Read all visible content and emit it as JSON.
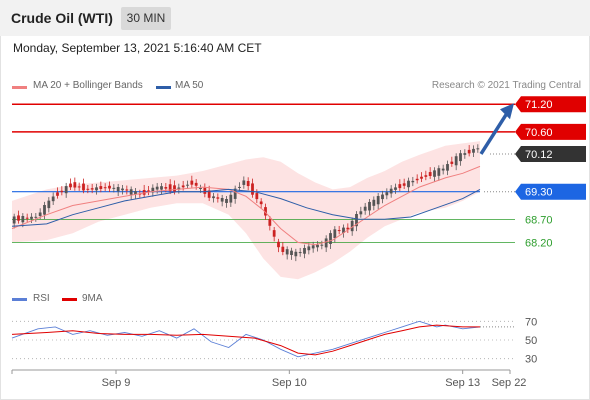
{
  "header": {
    "instrument": "Crude Oil (WTI)",
    "timeframe": "30 MIN"
  },
  "datetime": "Monday, September 13, 2021 5:16:40 AM CET",
  "legend": {
    "items": [
      {
        "label": "MA 20 + Bollinger Bands",
        "color": "#f08080"
      },
      {
        "label": "MA 50",
        "color": "#2e5ea8"
      }
    ],
    "credit": "Research © 2021 Trading Central"
  },
  "rsi_legend": {
    "items": [
      {
        "label": "RSI",
        "color": "#5b7fd6"
      },
      {
        "label": "9MA",
        "color": "#e00000"
      }
    ]
  },
  "colors": {
    "resistance": "#e00000",
    "support_strong": "#1d66e3",
    "support": "#2e9e2e",
    "price": "#333333",
    "arrow": "#2e5ea8",
    "band_fill": "#fde3e3",
    "candle_up": "#555555",
    "candle_down": "#cc2222"
  },
  "chart_data": {
    "type": "line",
    "xlabels": [
      "Sep 9",
      "Sep 10",
      "Sep 13",
      "Sep 22"
    ],
    "ylim": [
      67.6,
      71.4
    ],
    "levels": [
      {
        "value": 71.2,
        "label": "71.20",
        "kind": "resistance"
      },
      {
        "value": 70.6,
        "label": "70.60",
        "kind": "resistance"
      },
      {
        "value": 70.12,
        "label": "70.12",
        "kind": "price"
      },
      {
        "value": 69.3,
        "label": "69.30",
        "kind": "support_strong"
      },
      {
        "value": 68.7,
        "label": "68.70",
        "kind": "support"
      },
      {
        "value": 68.2,
        "label": "68.20",
        "kind": "support"
      }
    ],
    "price": {
      "t": [
        0,
        6,
        10,
        14,
        18,
        22,
        26,
        30,
        34,
        38,
        42,
        46,
        50,
        54,
        58,
        62,
        66,
        69,
        72,
        75,
        78,
        81,
        84,
        88,
        92,
        96,
        100,
        104,
        108
      ],
      "close": [
        68.7,
        68.75,
        69.2,
        69.45,
        69.35,
        69.4,
        69.35,
        69.25,
        69.4,
        69.35,
        69.5,
        69.2,
        69.1,
        69.55,
        69.0,
        68.05,
        67.95,
        68.1,
        68.15,
        68.45,
        68.5,
        68.9,
        69.1,
        69.35,
        69.5,
        69.65,
        69.8,
        70.1,
        70.25
      ]
    },
    "ma20": {
      "t": [
        0,
        8,
        14,
        20,
        26,
        32,
        38,
        44,
        50,
        54,
        58,
        62,
        66,
        70,
        74,
        78,
        82,
        86,
        90,
        94,
        100,
        104,
        108
      ],
      "value": [
        68.5,
        68.8,
        69.0,
        69.1,
        69.2,
        69.3,
        69.35,
        69.4,
        69.35,
        69.2,
        68.9,
        68.5,
        68.2,
        68.15,
        68.25,
        68.5,
        68.75,
        69.0,
        69.2,
        69.4,
        69.6,
        69.7,
        69.85
      ]
    },
    "bb_upper": {
      "t": [
        0,
        8,
        14,
        20,
        26,
        32,
        38,
        44,
        50,
        54,
        58,
        62,
        66,
        70,
        74,
        78,
        82,
        86,
        90,
        94,
        100,
        104,
        108
      ],
      "value": [
        69.1,
        69.35,
        69.45,
        69.5,
        69.55,
        69.6,
        69.65,
        69.75,
        69.9,
        70.0,
        70.05,
        69.95,
        69.7,
        69.5,
        69.35,
        69.4,
        69.6,
        69.75,
        69.95,
        70.1,
        70.3,
        70.35,
        70.4
      ]
    },
    "bb_lower": {
      "t": [
        0,
        8,
        14,
        20,
        26,
        32,
        38,
        44,
        50,
        54,
        58,
        62,
        66,
        70,
        74,
        78,
        82,
        86,
        90,
        94,
        100,
        104,
        108
      ],
      "value": [
        68.2,
        68.25,
        68.4,
        68.65,
        68.8,
        68.95,
        69.05,
        69.05,
        68.8,
        68.4,
        67.85,
        67.45,
        67.4,
        67.55,
        67.75,
        68.0,
        68.3,
        68.55,
        68.7,
        68.85,
        68.95,
        69.1,
        69.3
      ]
    },
    "ma50": {
      "t": [
        0,
        8,
        14,
        20,
        26,
        32,
        38,
        44,
        50,
        56,
        62,
        68,
        74,
        80,
        86,
        92,
        98,
        104,
        108
      ],
      "value": [
        68.55,
        68.6,
        68.8,
        68.95,
        69.1,
        69.2,
        69.3,
        69.3,
        69.35,
        69.3,
        69.15,
        68.95,
        68.8,
        68.7,
        68.7,
        68.75,
        68.95,
        69.15,
        69.35
      ]
    },
    "forecast": {
      "from": 70.12,
      "to": 71.2
    },
    "rsi": {
      "ylim": [
        20,
        80
      ],
      "levels": [
        70,
        50,
        30
      ],
      "rsi": {
        "t": [
          0,
          6,
          10,
          14,
          18,
          22,
          26,
          30,
          34,
          38,
          42,
          46,
          50,
          54,
          58,
          62,
          66,
          70,
          74,
          78,
          82,
          86,
          90,
          94,
          98,
          100,
          104,
          108
        ],
        "value": [
          52,
          62,
          64,
          56,
          60,
          55,
          58,
          54,
          60,
          52,
          62,
          48,
          42,
          56,
          50,
          40,
          32,
          36,
          40,
          46,
          52,
          58,
          64,
          70,
          64,
          66,
          62,
          64
        ]
      },
      "ma9": {
        "t": [
          0,
          8,
          14,
          20,
          26,
          32,
          38,
          44,
          50,
          56,
          62,
          66,
          70,
          74,
          78,
          82,
          86,
          90,
          94,
          98,
          104,
          108
        ],
        "value": [
          56,
          58,
          60,
          57,
          56,
          56,
          55,
          56,
          54,
          52,
          44,
          36,
          34,
          38,
          44,
          50,
          56,
          60,
          64,
          66,
          64,
          64
        ]
      }
    }
  }
}
